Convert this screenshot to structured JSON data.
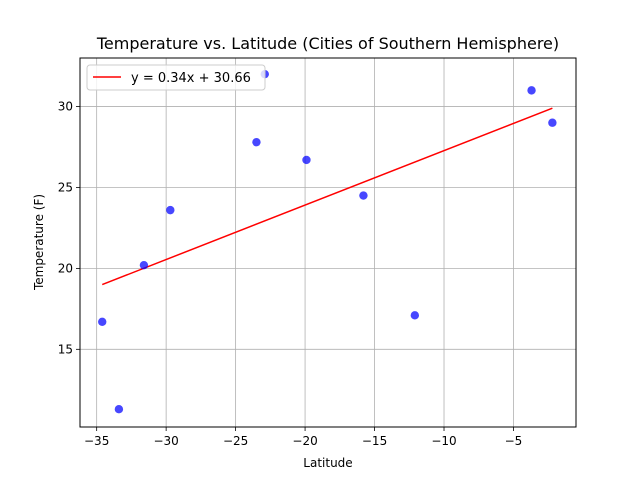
{
  "chart_data": {
    "type": "scatter",
    "title": "Temperature vs. Latitude (Cities of Southern Hemisphere)",
    "xlabel": "Latitude",
    "ylabel": "Temperature (F)",
    "xlim": [
      -36.2,
      -0.5
    ],
    "ylim": [
      10.2,
      33.0
    ],
    "xticks": [
      -35,
      -30,
      -25,
      -20,
      -15,
      -10,
      -5
    ],
    "xtick_labels": [
      "−35",
      "−30",
      "−25",
      "−20",
      "−15",
      "−10",
      "−5"
    ],
    "yticks": [
      15,
      20,
      25,
      30
    ],
    "ytick_labels": [
      "15",
      "20",
      "25",
      "30"
    ],
    "grid": true,
    "legend_position": "top-left",
    "points": [
      {
        "x": -34.6,
        "y": 16.7
      },
      {
        "x": -33.4,
        "y": 11.3
      },
      {
        "x": -31.6,
        "y": 20.2
      },
      {
        "x": -29.7,
        "y": 23.6
      },
      {
        "x": -23.5,
        "y": 27.8
      },
      {
        "x": -22.9,
        "y": 32.0
      },
      {
        "x": -19.9,
        "y": 26.7
      },
      {
        "x": -15.8,
        "y": 24.5
      },
      {
        "x": -12.1,
        "y": 17.1
      },
      {
        "x": -3.7,
        "y": 31.0
      },
      {
        "x": -2.2,
        "y": 29.0
      }
    ],
    "regression": {
      "label": "y = 0.34x + 30.66",
      "x_start": -34.6,
      "x_end": -2.2,
      "y_start": 19.0,
      "y_end": 29.9
    },
    "colors": {
      "points": "#0000ff",
      "line": "#ff0000",
      "grid": "#b0b0b0"
    }
  }
}
